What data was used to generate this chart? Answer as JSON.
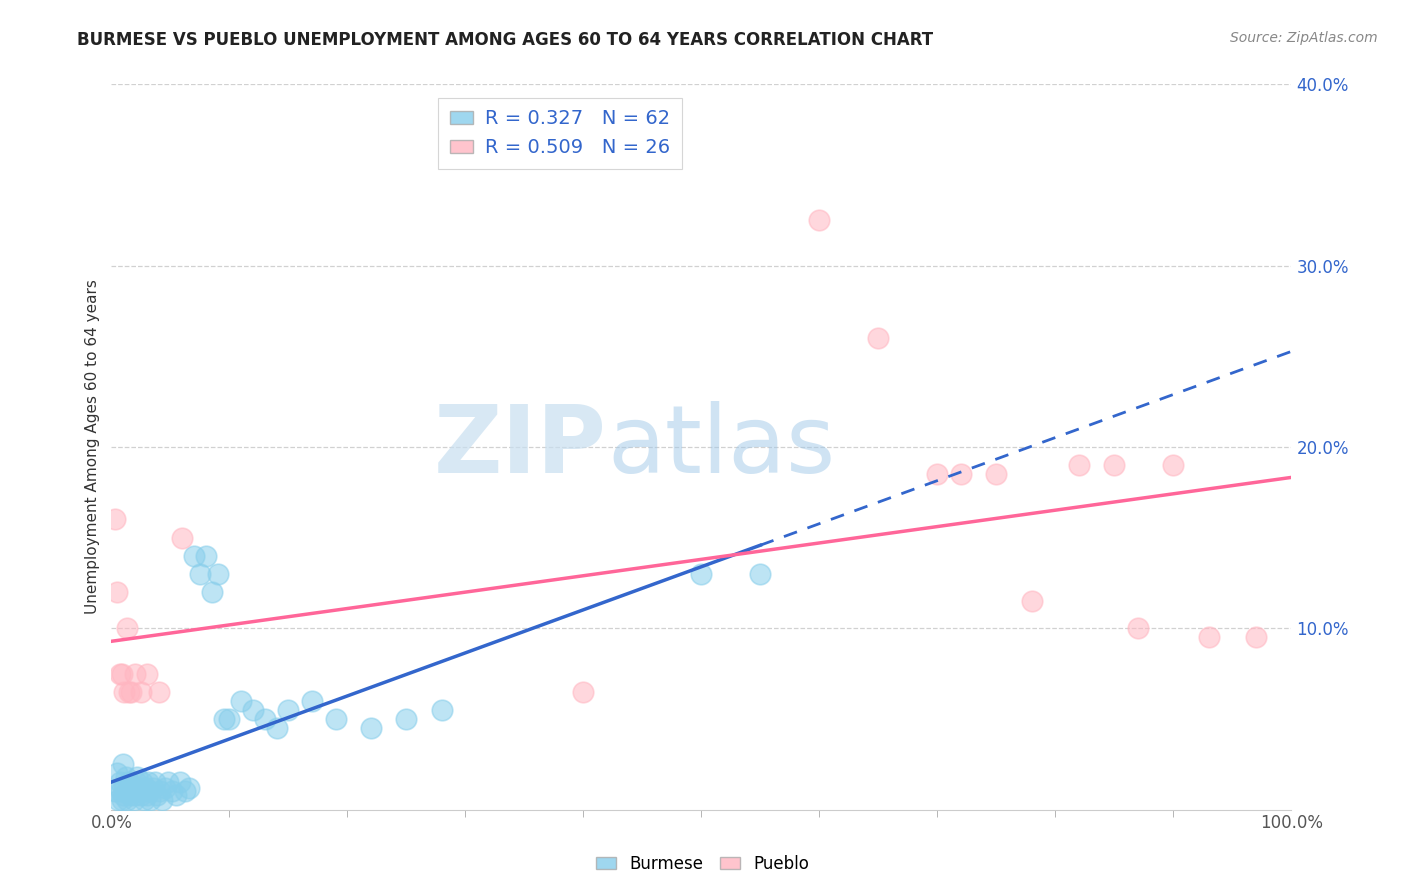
{
  "title": "BURMESE VS PUEBLO UNEMPLOYMENT AMONG AGES 60 TO 64 YEARS CORRELATION CHART",
  "source": "Source: ZipAtlas.com",
  "ylabel": "Unemployment Among Ages 60 to 64 years",
  "xlim": [
    0,
    1.0
  ],
  "ylim": [
    0,
    0.4
  ],
  "burmese_color": "#87CEEB",
  "pueblo_color": "#FFB6C1",
  "burmese_R": 0.327,
  "burmese_N": 62,
  "pueblo_R": 0.509,
  "pueblo_N": 26,
  "burmese_line_color": "#3366CC",
  "pueblo_line_color": "#FF6699",
  "legend_label_burmese": "Burmese",
  "legend_label_pueblo": "Pueblo",
  "watermark_zip": "ZIP",
  "watermark_atlas": "atlas",
  "background_color": "#ffffff",
  "burmese_x": [
    0.003,
    0.005,
    0.006,
    0.007,
    0.008,
    0.009,
    0.01,
    0.01,
    0.011,
    0.012,
    0.013,
    0.014,
    0.015,
    0.016,
    0.017,
    0.018,
    0.019,
    0.02,
    0.021,
    0.022,
    0.023,
    0.024,
    0.025,
    0.026,
    0.027,
    0.028,
    0.029,
    0.03,
    0.031,
    0.032,
    0.033,
    0.035,
    0.037,
    0.039,
    0.041,
    0.043,
    0.045,
    0.048,
    0.051,
    0.055,
    0.058,
    0.062,
    0.066,
    0.07,
    0.075,
    0.08,
    0.085,
    0.09,
    0.095,
    0.1,
    0.11,
    0.12,
    0.13,
    0.14,
    0.15,
    0.17,
    0.19,
    0.22,
    0.25,
    0.28,
    0.5,
    0.55
  ],
  "burmese_y": [
    0.01,
    0.02,
    0.005,
    0.015,
    0.01,
    0.005,
    0.008,
    0.025,
    0.012,
    0.018,
    0.005,
    0.01,
    0.015,
    0.008,
    0.012,
    0.01,
    0.005,
    0.008,
    0.015,
    0.018,
    0.01,
    0.012,
    0.008,
    0.015,
    0.01,
    0.005,
    0.012,
    0.008,
    0.015,
    0.01,
    0.005,
    0.012,
    0.015,
    0.008,
    0.01,
    0.005,
    0.012,
    0.015,
    0.01,
    0.008,
    0.015,
    0.01,
    0.012,
    0.14,
    0.13,
    0.14,
    0.12,
    0.13,
    0.05,
    0.05,
    0.06,
    0.055,
    0.05,
    0.045,
    0.055,
    0.06,
    0.05,
    0.045,
    0.05,
    0.055,
    0.13,
    0.13
  ],
  "pueblo_x": [
    0.003,
    0.005,
    0.007,
    0.009,
    0.011,
    0.013,
    0.015,
    0.017,
    0.02,
    0.025,
    0.03,
    0.04,
    0.06,
    0.4,
    0.6,
    0.65,
    0.7,
    0.72,
    0.75,
    0.78,
    0.82,
    0.85,
    0.87,
    0.9,
    0.93,
    0.97
  ],
  "pueblo_y": [
    0.16,
    0.12,
    0.075,
    0.075,
    0.065,
    0.1,
    0.065,
    0.065,
    0.075,
    0.065,
    0.075,
    0.065,
    0.15,
    0.065,
    0.325,
    0.26,
    0.185,
    0.185,
    0.185,
    0.115,
    0.19,
    0.19,
    0.1,
    0.19,
    0.095,
    0.095
  ]
}
